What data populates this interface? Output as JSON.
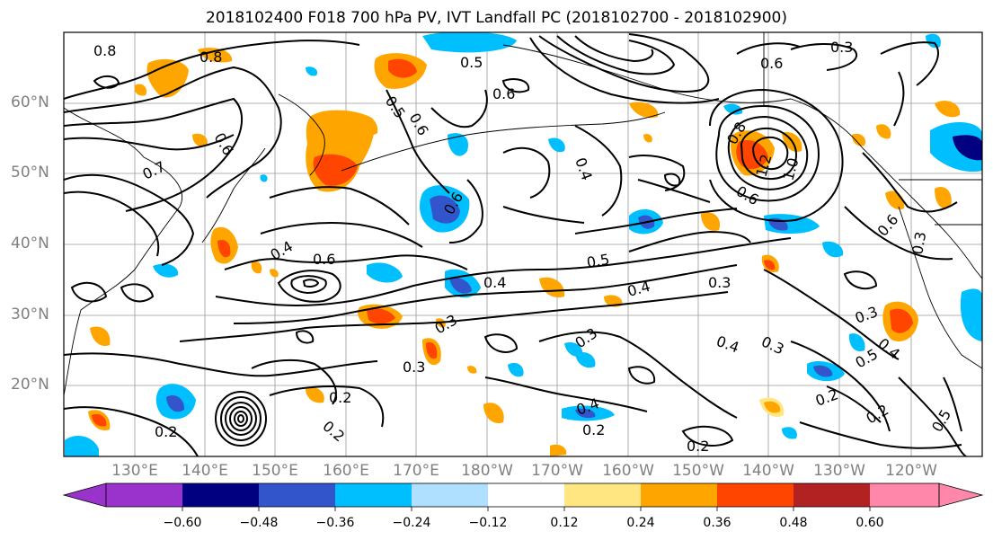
{
  "title": "2018102400 F018 700 hPa PV, IVT Landfall PC (2018102700 - 2018102900)",
  "lat_labels": [
    "60°N",
    "50°N",
    "40°N",
    "30°N",
    "20°N"
  ],
  "lon_labels": [
    "130°E",
    "140°E",
    "150°E",
    "160°E",
    "170°E",
    "180°W",
    "170°W",
    "160°W",
    "150°W",
    "140°W",
    "130°W",
    "120°W"
  ],
  "contour_labels": [
    "0.8",
    "0.8",
    "0.5",
    "0.6",
    "0.5",
    "0.6",
    "0.6",
    "0.7",
    "0.6",
    "0.4",
    "0.6",
    "0.4",
    "0.4",
    "0.5",
    "0.4",
    "0.3",
    "0.3",
    "0.3",
    "0.3",
    "0.4",
    "0.3",
    "0.2",
    "0.2",
    "0.2",
    "0.4",
    "0.2",
    "0.2",
    "1.2",
    "1.0",
    "0.8",
    "0.6",
    "0.6",
    "0.3",
    "0.5",
    "0.4",
    "0.3",
    "0.2",
    "0.2",
    "0.5",
    "0.6",
    "0.3"
  ],
  "colorbar": {
    "tick_labels": [
      "−0.60",
      "−0.48",
      "−0.36",
      "−0.24",
      "−0.12",
      "0.12",
      "0.24",
      "0.36",
      "0.48",
      "0.60"
    ],
    "colors": [
      "#9933cc",
      "#000080",
      "#3355cc",
      "#00bfff",
      "#b0e0ff",
      "#ffffff",
      "#ffe680",
      "#ffa500",
      "#ff4500",
      "#b22222",
      "#ff88aa"
    ]
  },
  "shading_colors": {
    "neg_light": "#00bfff",
    "neg_mid": "#3355cc",
    "neg_dark": "#000080",
    "pos_light": "#ffe680",
    "pos_mid": "#ffa500",
    "pos_strong": "#ff4500"
  }
}
